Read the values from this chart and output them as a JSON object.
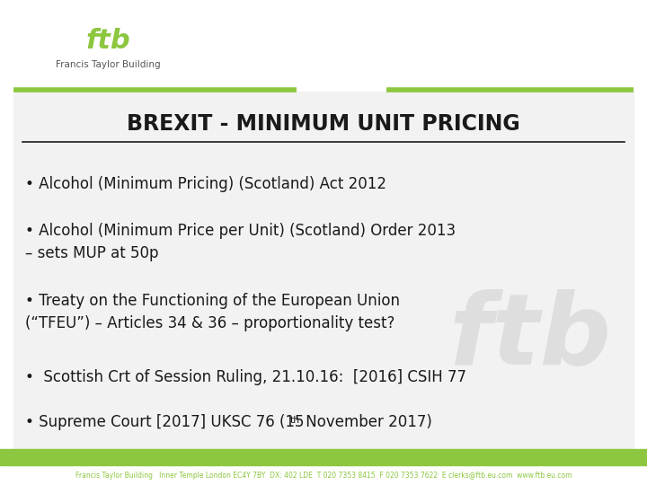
{
  "background_color": "#ffffff",
  "footer_bar_color": "#8dc63f",
  "title": "BREXIT - MINIMUM UNIT PRICING",
  "title_fontsize": 17,
  "title_color": "#1a1a1a",
  "logo_color": "#8dc63f",
  "logo_subtitle": "Francis Taylor Building",
  "logo_subtitle_color": "#555555",
  "bullet_points": [
    "• Alcohol (Minimum Pricing) (Scotland) Act 2012",
    "• Alcohol (Minimum Price per Unit) (Scotland) Order 2013\n– sets MUP at 50p",
    "• Treaty on the Functioning of the European Union\n(“TFEU”) – Articles 34 & 36 – proportionality test?",
    "•  Scottish Crt of Session Ruling, 21.10.16:  [2016] CSIH 77",
    "• Supreme Court [2017] UKSC 76 (15"
  ],
  "last_bullet_suffix": " November 2017)",
  "last_bullet_super": "th",
  "bullet_fontsize": 12,
  "bullet_color": "#1a1a1a",
  "footer_text": "Francis Taylor Building   Inner Temple London EC4Y 7BY  DX: 402 LDE  T 020 7353 8415  F 020 7353 7622  E clerks@ftb.eu.com  www.ftb.eu.com",
  "footer_text_color": "#8dc63f",
  "footer_fontsize": 5.5,
  "watermark_color": "#dedede",
  "separator_color": "#8dc63f",
  "header_bg": "#f2f2f2"
}
